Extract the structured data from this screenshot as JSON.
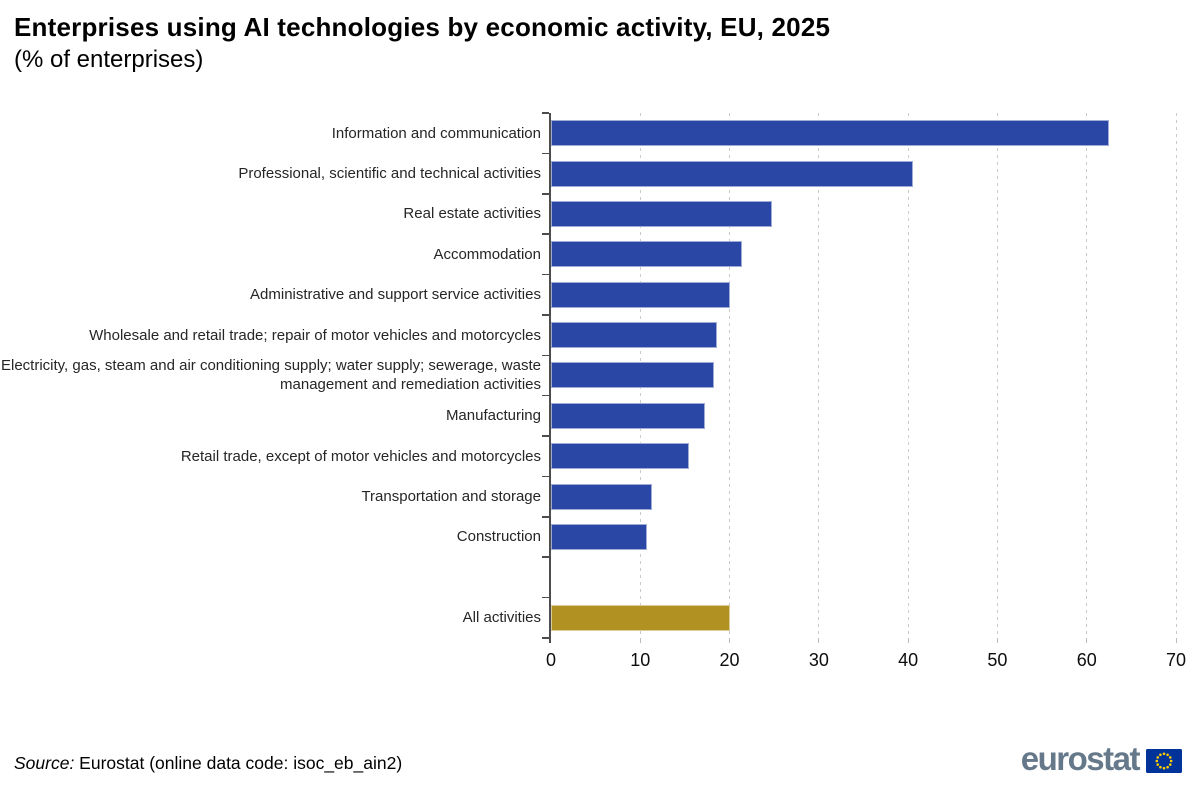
{
  "header": {
    "title": "Enterprises using AI technologies by economic activity, EU, 2025",
    "subtitle": "(% of enterprises)"
  },
  "chart_data": {
    "type": "bar",
    "orientation": "horizontal",
    "title": "Enterprises using AI technologies by economic activity, EU, 2025",
    "unit": "% of enterprises",
    "xlabel": "",
    "ylabel": "",
    "xlim": [
      0,
      70
    ],
    "xticks": [
      0,
      10,
      20,
      30,
      40,
      50,
      60,
      70
    ],
    "grid": "vertical-dashed",
    "bar_color_default": "#2A47A5",
    "bar_color_highlight": "#B09122",
    "items": [
      {
        "label": "Information and communication",
        "value": 62.5
      },
      {
        "label": "Professional, scientific and technical activities",
        "value": 40.5
      },
      {
        "label": "Real estate activities",
        "value": 24.8
      },
      {
        "label": "Accommodation",
        "value": 21.4
      },
      {
        "label": "Administrative and support service activities",
        "value": 20.0
      },
      {
        "label": "Wholesale and retail trade; repair of motor vehicles and motorcycles",
        "value": 18.6
      },
      {
        "label": "Electricity, gas, steam and air conditioning supply; water supply; sewerage, waste management and remediation activities",
        "value": 18.2
      },
      {
        "label": "Manufacturing",
        "value": 17.3
      },
      {
        "label": "Retail trade, except of motor vehicles and motorcycles",
        "value": 15.5
      },
      {
        "label": "Transportation and storage",
        "value": 11.3
      },
      {
        "label": "Construction",
        "value": 10.8
      },
      {
        "label": "",
        "value": null,
        "spacer": true
      },
      {
        "label": "All activities",
        "value": 20.0,
        "highlight": true
      }
    ]
  },
  "source": {
    "prefix": "Source:",
    "text": " Eurostat (online data code: isoc_eb_ain2)"
  },
  "logo": {
    "wordmark": "eurostat"
  },
  "colors": {
    "axis": "#4d4d4d",
    "gridline": "#cbcbcb",
    "category_text": "#262626",
    "flag_blue": "#003399",
    "flag_stars": "#FFCC00",
    "logo_text": "#65798A"
  }
}
